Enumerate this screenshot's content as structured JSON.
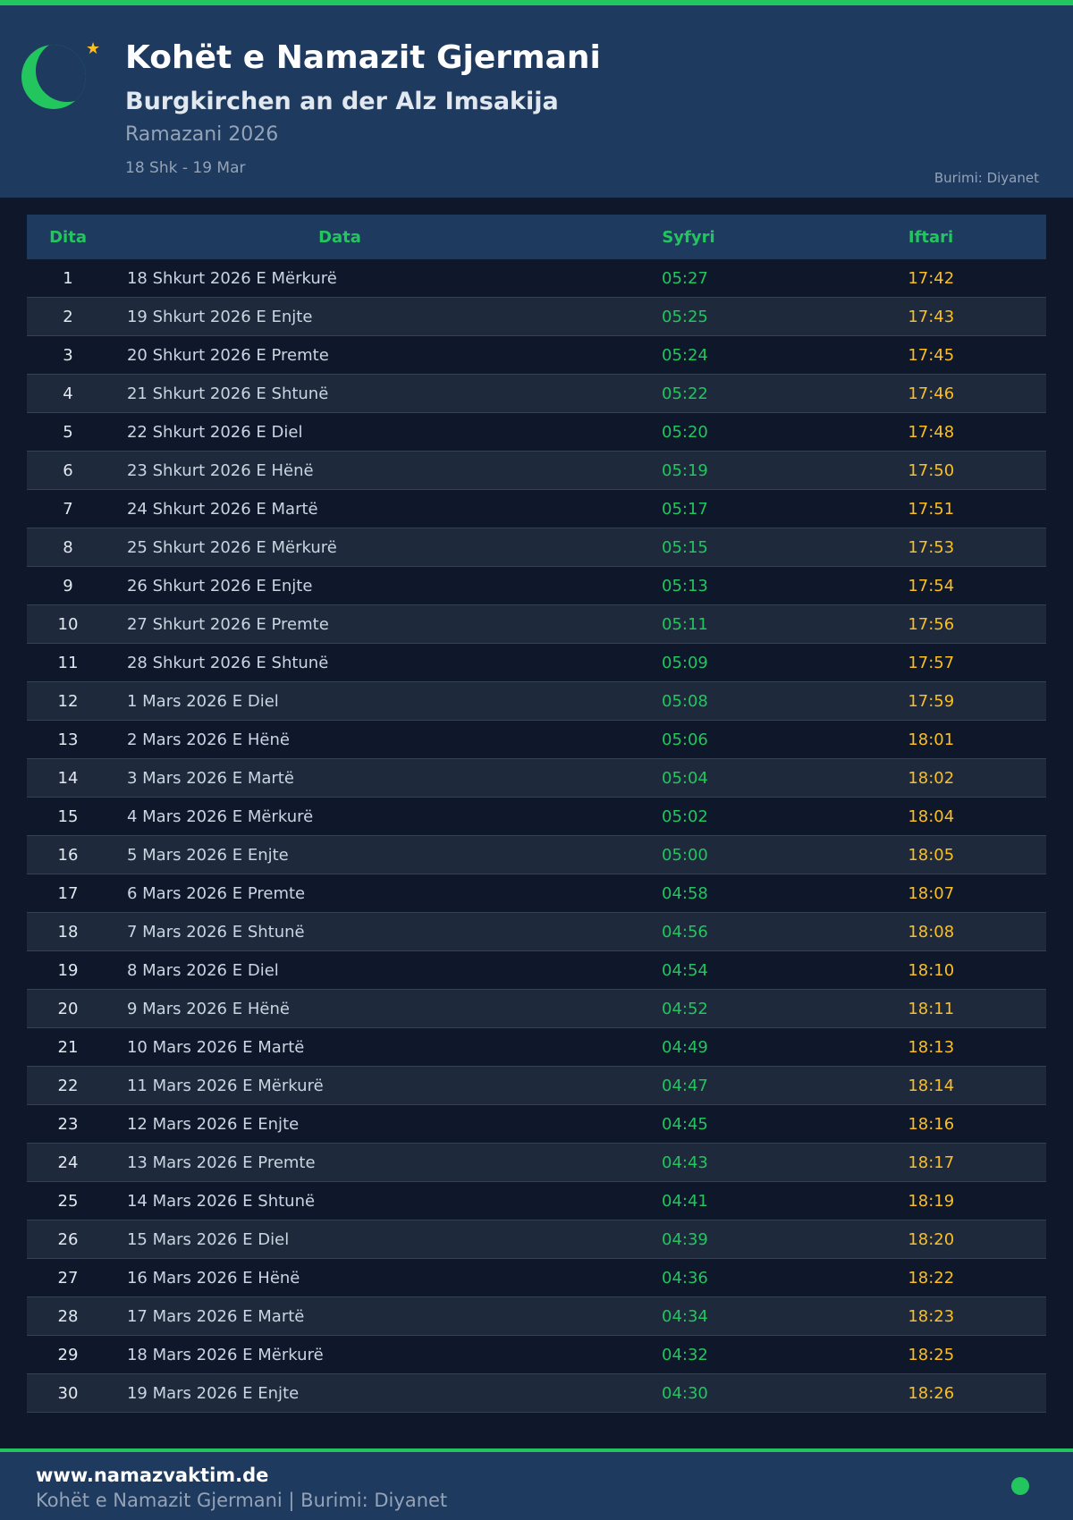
{
  "header": {
    "title": "Kohët e Namazit Gjermani",
    "subtitle": "Burgkirchen an der Alz Imsakija",
    "ramadan": "Ramazani 2026",
    "range": "18 Shk - 19 Mar",
    "source": "Burimi: Diyanet"
  },
  "colors": {
    "accent": "#22c55e",
    "iftar": "#fbbf24",
    "header_bg": "#1e3a5f",
    "page_bg": "#0f172a"
  },
  "table": {
    "columns": [
      "Dita",
      "Data",
      "Syfyri",
      "Iftari"
    ],
    "rows": [
      [
        "1",
        "18 Shkurt 2026 E Mërkurë",
        "05:27",
        "17:42"
      ],
      [
        "2",
        "19 Shkurt 2026 E Enjte",
        "05:25",
        "17:43"
      ],
      [
        "3",
        "20 Shkurt 2026 E Premte",
        "05:24",
        "17:45"
      ],
      [
        "4",
        "21 Shkurt 2026 E Shtunë",
        "05:22",
        "17:46"
      ],
      [
        "5",
        "22 Shkurt 2026 E Diel",
        "05:20",
        "17:48"
      ],
      [
        "6",
        "23 Shkurt 2026 E Hënë",
        "05:19",
        "17:50"
      ],
      [
        "7",
        "24 Shkurt 2026 E Martë",
        "05:17",
        "17:51"
      ],
      [
        "8",
        "25 Shkurt 2026 E Mërkurë",
        "05:15",
        "17:53"
      ],
      [
        "9",
        "26 Shkurt 2026 E Enjte",
        "05:13",
        "17:54"
      ],
      [
        "10",
        "27 Shkurt 2026 E Premte",
        "05:11",
        "17:56"
      ],
      [
        "11",
        "28 Shkurt 2026 E Shtunë",
        "05:09",
        "17:57"
      ],
      [
        "12",
        "1 Mars 2026 E Diel",
        "05:08",
        "17:59"
      ],
      [
        "13",
        "2 Mars 2026 E Hënë",
        "05:06",
        "18:01"
      ],
      [
        "14",
        "3 Mars 2026 E Martë",
        "05:04",
        "18:02"
      ],
      [
        "15",
        "4 Mars 2026 E Mërkurë",
        "05:02",
        "18:04"
      ],
      [
        "16",
        "5 Mars 2026 E Enjte",
        "05:00",
        "18:05"
      ],
      [
        "17",
        "6 Mars 2026 E Premte",
        "04:58",
        "18:07"
      ],
      [
        "18",
        "7 Mars 2026 E Shtunë",
        "04:56",
        "18:08"
      ],
      [
        "19",
        "8 Mars 2026 E Diel",
        "04:54",
        "18:10"
      ],
      [
        "20",
        "9 Mars 2026 E Hënë",
        "04:52",
        "18:11"
      ],
      [
        "21",
        "10 Mars 2026 E Martë",
        "04:49",
        "18:13"
      ],
      [
        "22",
        "11 Mars 2026 E Mërkurë",
        "04:47",
        "18:14"
      ],
      [
        "23",
        "12 Mars 2026 E Enjte",
        "04:45",
        "18:16"
      ],
      [
        "24",
        "13 Mars 2026 E Premte",
        "04:43",
        "18:17"
      ],
      [
        "25",
        "14 Mars 2026 E Shtunë",
        "04:41",
        "18:19"
      ],
      [
        "26",
        "15 Mars 2026 E Diel",
        "04:39",
        "18:20"
      ],
      [
        "27",
        "16 Mars 2026 E Hënë",
        "04:36",
        "18:22"
      ],
      [
        "28",
        "17 Mars 2026 E Martë",
        "04:34",
        "18:23"
      ],
      [
        "29",
        "18 Mars 2026 E Mërkurë",
        "04:32",
        "18:25"
      ],
      [
        "30",
        "19 Mars 2026 E Enjte",
        "04:30",
        "18:26"
      ]
    ]
  },
  "footer": {
    "site": "www.namazvaktim.de",
    "description": "Kohët e Namazit Gjermani | Burimi: Diyanet"
  }
}
